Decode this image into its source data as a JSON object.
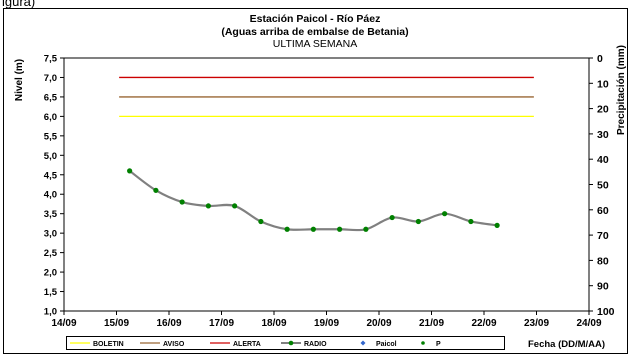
{
  "corner_text": "igura)",
  "chart_data": {
    "type": "line",
    "title": "Estación Paicol - Río Páez",
    "subtitle": "(Aguas arriba de embalse de Betania)",
    "subtitle2": "ULTIMA SEMANA",
    "ylabel": "Nivel (m)",
    "y2label": "Precipitación (mm)",
    "xlabel": "Fecha (DD/M/AA)",
    "ylim": [
      1.0,
      7.5
    ],
    "y2lim": [
      0,
      100
    ],
    "xlim": [
      0,
      10
    ],
    "x_ticks": [
      "14/09",
      "15/09",
      "16/09",
      "17/09",
      "18/09",
      "19/09",
      "20/09",
      "21/09",
      "22/09",
      "23/09",
      "24/09"
    ],
    "y_ticks": [
      "1,0",
      "1,5",
      "2,0",
      "2,5",
      "3,0",
      "3,5",
      "4,0",
      "4,5",
      "5,0",
      "5,5",
      "6,0",
      "6,5",
      "7,0",
      "7,5"
    ],
    "y2_ticks": [
      "0",
      "10",
      "20",
      "30",
      "40",
      "50",
      "60",
      "70",
      "80",
      "90",
      "100"
    ],
    "thresholds": [
      {
        "name": "BOLETIN",
        "value": 6.0,
        "color": "#ffff00"
      },
      {
        "name": "AVISO",
        "value": 6.5,
        "color": "#996633"
      },
      {
        "name": "ALERTA",
        "value": 7.0,
        "color": "#cc0000"
      }
    ],
    "threshold_x_range": [
      1.05,
      8.95
    ],
    "series": [
      {
        "name": "RADIO",
        "color": "#808080",
        "marker_color": "#008000",
        "points": [
          {
            "x": "15/09",
            "y": 4.6
          },
          {
            "x": "15/09",
            "y": 4.1
          },
          {
            "x": "16/09",
            "y": 3.8
          },
          {
            "x": "16/09",
            "y": 3.7
          },
          {
            "x": "17/09",
            "y": 3.7
          },
          {
            "x": "17/09",
            "y": 3.3
          },
          {
            "x": "18/09",
            "y": 3.1
          },
          {
            "x": "18/09",
            "y": 3.1
          },
          {
            "x": "19/09",
            "y": 3.1
          },
          {
            "x": "19/09",
            "y": 3.1
          },
          {
            "x": "20/09",
            "y": 3.4
          },
          {
            "x": "20/09",
            "y": 3.3
          },
          {
            "x": "21/09",
            "y": 3.5
          },
          {
            "x": "21/09",
            "y": 3.3
          },
          {
            "x": "22/09",
            "y": 3.2
          }
        ],
        "x_days": [
          1.25,
          1.75,
          2.25,
          2.75,
          3.25,
          3.75,
          4.25,
          4.75,
          5.25,
          5.75,
          6.25,
          6.75,
          7.25,
          7.75,
          8.25
        ]
      }
    ],
    "legend": {
      "placement": "bottom",
      "entries": [
        {
          "label": "BOLETIN",
          "color": "#ffff00",
          "kind": "line"
        },
        {
          "label": "AVISO",
          "color": "#996633",
          "kind": "line"
        },
        {
          "label": "ALERTA",
          "color": "#cc0000",
          "kind": "line"
        },
        {
          "label": "RADIO",
          "color": "#808080",
          "kind": "line-marker",
          "marker_color": "#008000"
        },
        {
          "label": "Paicol",
          "color": "#3366cc",
          "kind": "marker"
        },
        {
          "label": "P",
          "color": "#008000",
          "kind": "marker"
        }
      ]
    },
    "grid": false
  }
}
